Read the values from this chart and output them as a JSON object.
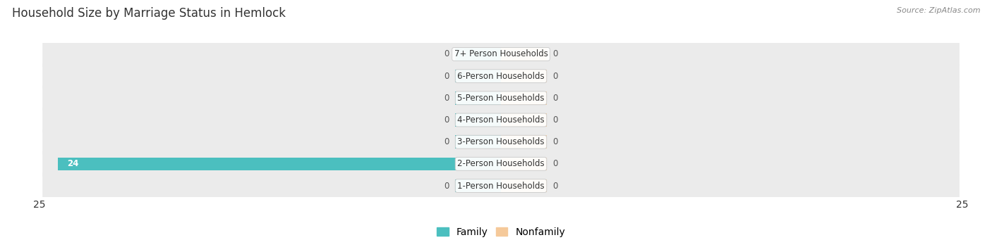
{
  "title": "Household Size by Marriage Status in Hemlock",
  "source": "Source: ZipAtlas.com",
  "categories": [
    "7+ Person Households",
    "6-Person Households",
    "5-Person Households",
    "4-Person Households",
    "3-Person Households",
    "2-Person Households",
    "1-Person Households"
  ],
  "family_values": [
    0,
    0,
    0,
    0,
    0,
    24,
    0
  ],
  "nonfamily_values": [
    0,
    0,
    0,
    0,
    0,
    0,
    0
  ],
  "family_color": "#4bbfbf",
  "nonfamily_color": "#f5c99a",
  "xlim": 25,
  "row_bg_color": "#ebebeb",
  "title_fontsize": 12,
  "axis_fontsize": 10,
  "legend_fontsize": 10,
  "bar_height": 0.6,
  "stub_size": 2.5
}
